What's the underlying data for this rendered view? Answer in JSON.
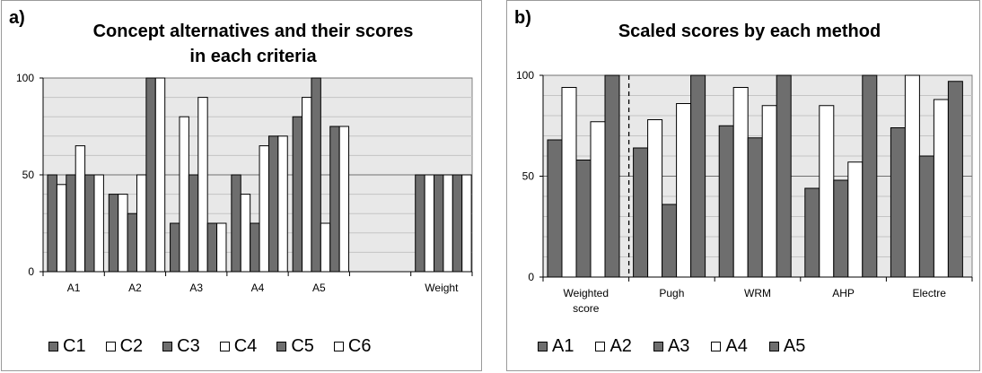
{
  "colors": {
    "dark_fill": "#6e6e6e",
    "light_fill": "#ffffff",
    "plot_bg": "#e8e8e8",
    "bar_stroke": "#000000",
    "gridline": "#9a9a9a"
  },
  "panels": [
    {
      "panel_label": "a)",
      "title_lines": [
        "Concept alternatives and their scores",
        "in each criteria"
      ]
    },
    {
      "panel_label": "b)",
      "title_lines": [
        "Scaled scores by each method"
      ]
    }
  ],
  "chart_data": [
    {
      "type": "bar",
      "title": "Concept alternatives and their scores in each criteria",
      "categories": [
        "A1",
        "A2",
        "A3",
        "A4",
        "A5",
        "",
        "Weight"
      ],
      "series": [
        {
          "name": "C1",
          "values": [
            50,
            40,
            25,
            50,
            80,
            null,
            50
          ],
          "fill": "dark"
        },
        {
          "name": "C2",
          "values": [
            45,
            40,
            80,
            40,
            90,
            null,
            50
          ],
          "fill": "light"
        },
        {
          "name": "C3",
          "values": [
            50,
            30,
            50,
            25,
            100,
            null,
            50
          ],
          "fill": "dark"
        },
        {
          "name": "C4",
          "values": [
            65,
            50,
            90,
            65,
            25,
            null,
            50
          ],
          "fill": "light"
        },
        {
          "name": "C5",
          "values": [
            50,
            100,
            25,
            70,
            75,
            null,
            50
          ],
          "fill": "dark"
        },
        {
          "name": "C6",
          "values": [
            50,
            100,
            25,
            70,
            75,
            null,
            50
          ],
          "fill": "light"
        }
      ],
      "ylim": [
        0,
        100
      ],
      "yticks": [
        0,
        50,
        100
      ],
      "grid": true,
      "legend_position": "bottom"
    },
    {
      "type": "bar",
      "title": "Scaled scores by each method",
      "categories": [
        [
          "Weighted",
          "score"
        ],
        [
          "Pugh"
        ],
        [
          "WRM"
        ],
        [
          "AHP"
        ],
        [
          "Electre"
        ]
      ],
      "series": [
        {
          "name": "A1",
          "values": [
            68,
            64,
            75,
            44,
            74
          ],
          "fill": "dark"
        },
        {
          "name": "A2",
          "values": [
            94,
            78,
            94,
            85,
            100
          ],
          "fill": "light"
        },
        {
          "name": "A3",
          "values": [
            58,
            36,
            69,
            48,
            60
          ],
          "fill": "dark"
        },
        {
          "name": "A4",
          "values": [
            77,
            86,
            85,
            57,
            88
          ],
          "fill": "light"
        },
        {
          "name": "A5",
          "values": [
            100,
            100,
            100,
            100,
            97
          ],
          "fill": "dark"
        }
      ],
      "ylim": [
        0,
        100
      ],
      "yticks": [
        0,
        50,
        100
      ],
      "grid": true,
      "dashed_separator_after_category": 0,
      "legend_position": "bottom"
    }
  ]
}
